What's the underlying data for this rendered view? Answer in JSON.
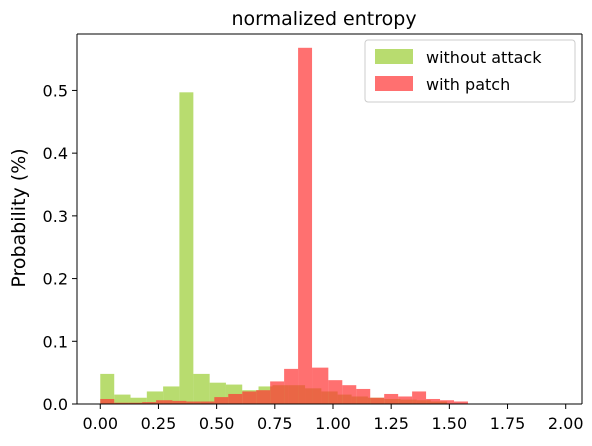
{
  "chart_data": {
    "type": "bar",
    "title": "normalized entropy",
    "xlabel": "",
    "ylabel": "Probability (%)",
    "xlim": [
      -0.1,
      2.07
    ],
    "ylim": [
      0,
      0.59
    ],
    "xticks": [
      0.0,
      0.25,
      0.5,
      0.75,
      1.0,
      1.25,
      1.5,
      1.75,
      2.0
    ],
    "xtick_labels": [
      "0.00",
      "0.25",
      "0.50",
      "0.75",
      "1.00",
      "1.25",
      "1.50",
      "1.75",
      "2.00"
    ],
    "yticks": [
      0.0,
      0.1,
      0.2,
      0.3,
      0.4,
      0.5
    ],
    "ytick_labels": [
      "0.0",
      "0.1",
      "0.2",
      "0.3",
      "0.4",
      "0.5"
    ],
    "grid": false,
    "legend_position": "top-right",
    "series": [
      {
        "name": "without attack",
        "color": "#9acd32",
        "opacity": 0.7,
        "bins": [
          {
            "x0": 0.0,
            "x1": 0.06,
            "y": 0.048
          },
          {
            "x0": 0.06,
            "x1": 0.13,
            "y": 0.015
          },
          {
            "x0": 0.13,
            "x1": 0.2,
            "y": 0.01
          },
          {
            "x0": 0.2,
            "x1": 0.27,
            "y": 0.02
          },
          {
            "x0": 0.27,
            "x1": 0.34,
            "y": 0.028
          },
          {
            "x0": 0.34,
            "x1": 0.4,
            "y": 0.497
          },
          {
            "x0": 0.4,
            "x1": 0.47,
            "y": 0.048
          },
          {
            "x0": 0.47,
            "x1": 0.54,
            "y": 0.034
          },
          {
            "x0": 0.54,
            "x1": 0.61,
            "y": 0.031
          },
          {
            "x0": 0.61,
            "x1": 0.68,
            "y": 0.022
          },
          {
            "x0": 0.68,
            "x1": 0.74,
            "y": 0.028
          },
          {
            "x0": 0.74,
            "x1": 0.81,
            "y": 0.03
          },
          {
            "x0": 0.81,
            "x1": 0.88,
            "y": 0.03
          },
          {
            "x0": 0.88,
            "x1": 0.95,
            "y": 0.025
          },
          {
            "x0": 0.95,
            "x1": 1.02,
            "y": 0.02
          },
          {
            "x0": 1.02,
            "x1": 1.08,
            "y": 0.015
          },
          {
            "x0": 1.08,
            "x1": 1.15,
            "y": 0.012
          },
          {
            "x0": 1.15,
            "x1": 1.22,
            "y": 0.01
          },
          {
            "x0": 1.22,
            "x1": 1.29,
            "y": 0.008
          },
          {
            "x0": 1.29,
            "x1": 1.36,
            "y": 0.007
          },
          {
            "x0": 1.36,
            "x1": 1.42,
            "y": 0.006
          },
          {
            "x0": 1.42,
            "x1": 1.49,
            "y": 0.004
          }
        ]
      },
      {
        "name": "with patch",
        "color": "#ff3333",
        "opacity": 0.7,
        "bins": [
          {
            "x0": 0.0,
            "x1": 0.06,
            "y": 0.008
          },
          {
            "x0": 0.06,
            "x1": 0.12,
            "y": 0.002
          },
          {
            "x0": 0.12,
            "x1": 0.18,
            "y": 0.002
          },
          {
            "x0": 0.18,
            "x1": 0.24,
            "y": 0.003
          },
          {
            "x0": 0.24,
            "x1": 0.31,
            "y": 0.006
          },
          {
            "x0": 0.31,
            "x1": 0.37,
            "y": 0.005
          },
          {
            "x0": 0.37,
            "x1": 0.43,
            "y": 0.004
          },
          {
            "x0": 0.43,
            "x1": 0.49,
            "y": 0.004
          },
          {
            "x0": 0.49,
            "x1": 0.55,
            "y": 0.011
          },
          {
            "x0": 0.55,
            "x1": 0.61,
            "y": 0.016
          },
          {
            "x0": 0.61,
            "x1": 0.67,
            "y": 0.02
          },
          {
            "x0": 0.67,
            "x1": 0.73,
            "y": 0.022
          },
          {
            "x0": 0.73,
            "x1": 0.79,
            "y": 0.036
          },
          {
            "x0": 0.79,
            "x1": 0.85,
            "y": 0.056
          },
          {
            "x0": 0.85,
            "x1": 0.91,
            "y": 0.568
          },
          {
            "x0": 0.91,
            "x1": 0.98,
            "y": 0.058
          },
          {
            "x0": 0.98,
            "x1": 1.04,
            "y": 0.038
          },
          {
            "x0": 1.04,
            "x1": 1.1,
            "y": 0.03
          },
          {
            "x0": 1.1,
            "x1": 1.16,
            "y": 0.024
          },
          {
            "x0": 1.16,
            "x1": 1.22,
            "y": 0.01
          },
          {
            "x0": 1.22,
            "x1": 1.28,
            "y": 0.016
          },
          {
            "x0": 1.28,
            "x1": 1.34,
            "y": 0.012
          },
          {
            "x0": 1.34,
            "x1": 1.4,
            "y": 0.02
          },
          {
            "x0": 1.4,
            "x1": 1.46,
            "y": 0.008
          },
          {
            "x0": 1.46,
            "x1": 1.52,
            "y": 0.006
          },
          {
            "x0": 1.52,
            "x1": 1.58,
            "y": 0.004
          }
        ]
      }
    ]
  }
}
